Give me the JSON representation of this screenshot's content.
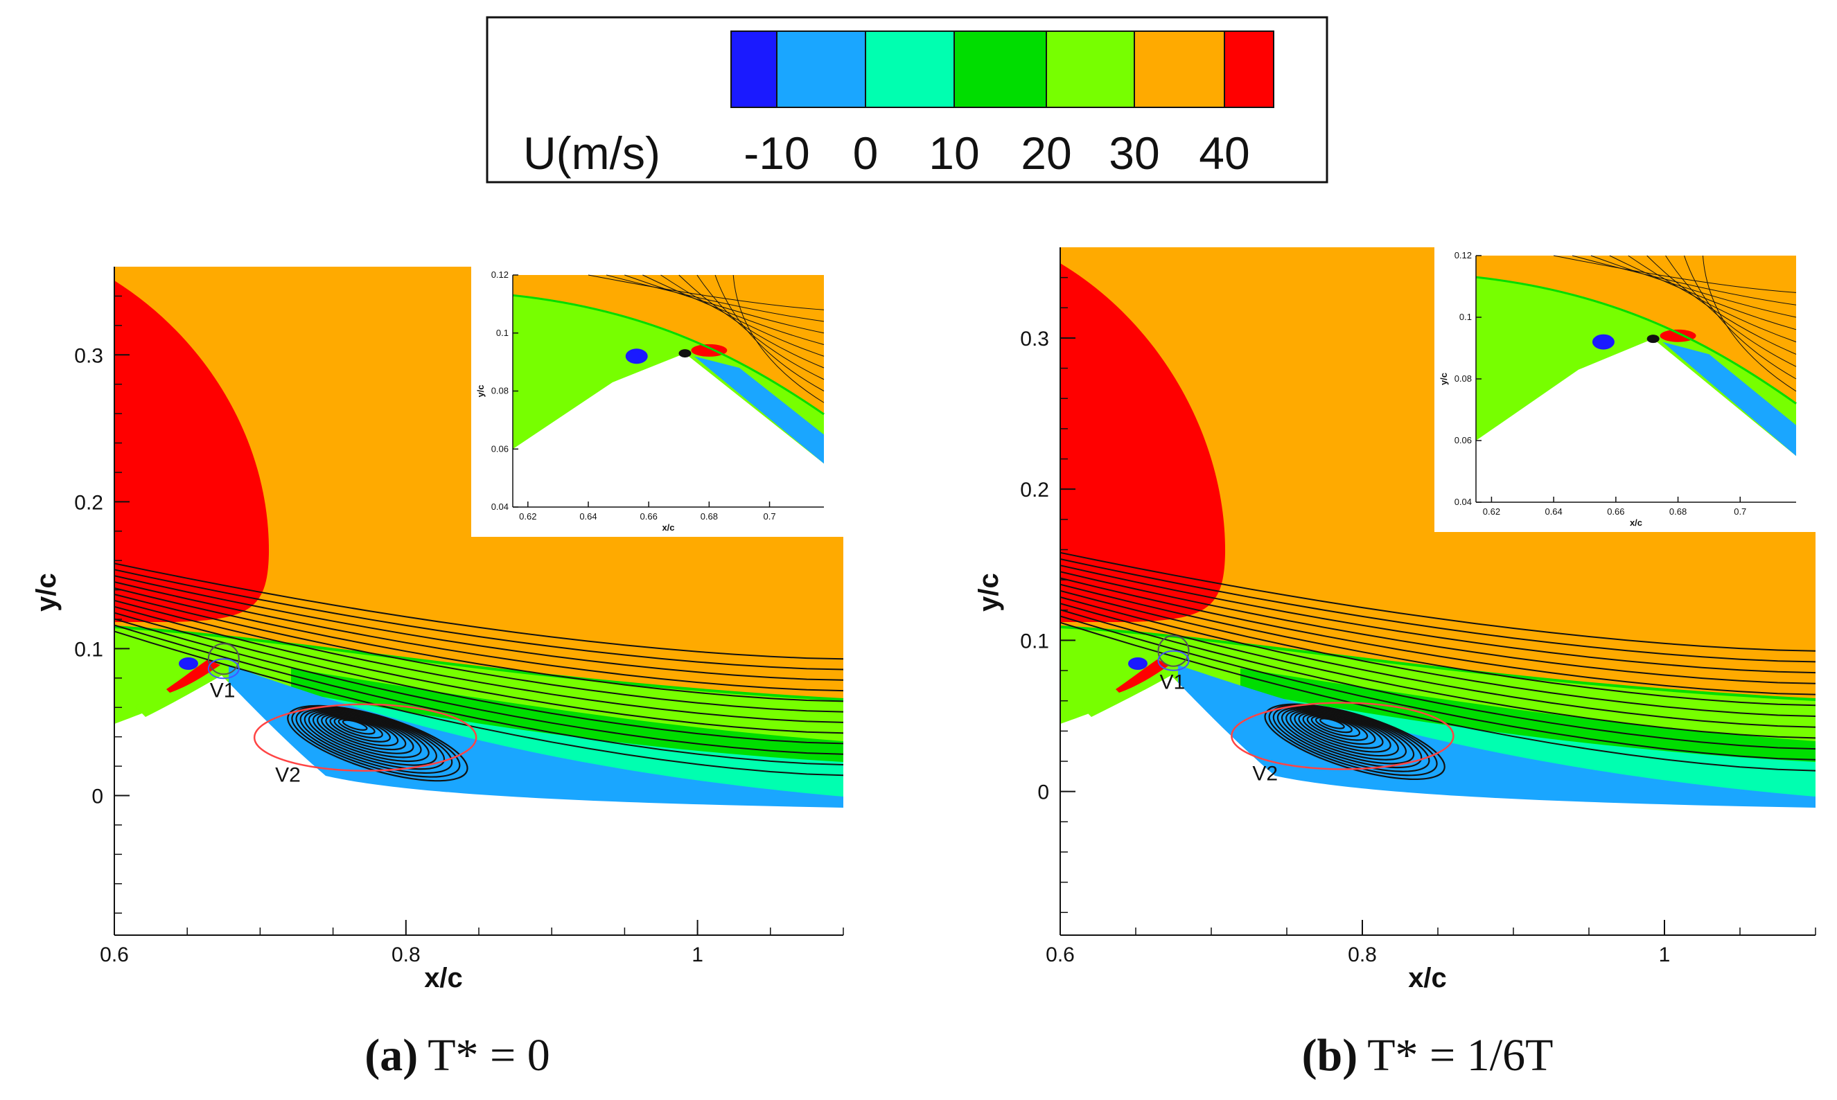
{
  "chart_data": {
    "type": "contour",
    "legend": {
      "title": "U(m/s)",
      "ticks": [
        "-10",
        "0",
        "10",
        "20",
        "30",
        "40"
      ],
      "level_colors": [
        "#1a1aff",
        "#1aa6ff",
        "#00ffb0",
        "#00dd00",
        "#77ff00",
        "#ffaa00",
        "#ff0000"
      ]
    },
    "panels": [
      {
        "caption_letter": "(a)",
        "caption_text": "T* = 0",
        "xlabel": "x/c",
        "ylabel": "y/c",
        "xlim": [
          0.6,
          1.1
        ],
        "ylim": [
          -0.095,
          0.36
        ],
        "xticks": [
          "0.6",
          "0.8",
          "1"
        ],
        "yticks": [
          "0",
          "0.1",
          "0.2",
          "0.3"
        ],
        "annotations": [
          "V1",
          "V2"
        ],
        "v2_center": [
          0.765,
          0.048
        ],
        "inset": {
          "xlabel": "x/c",
          "ylabel": "y/c",
          "xlim": [
            0.615,
            0.718
          ],
          "ylim": [
            0.04,
            0.12
          ],
          "xticks": [
            "0.62",
            "0.64",
            "0.66",
            "0.68",
            "0.7"
          ],
          "yticks": [
            "0.04",
            "0.06",
            "0.08",
            "0.1",
            "0.12"
          ]
        }
      },
      {
        "caption_letter": "(b)",
        "caption_text": "T* = 1/6T",
        "xlabel": "x/c",
        "ylabel": "y/c",
        "xlim": [
          0.6,
          1.1
        ],
        "ylim": [
          -0.095,
          0.36
        ],
        "xticks": [
          "0.6",
          "0.8",
          "1"
        ],
        "yticks": [
          "0",
          "0.1",
          "0.2",
          "0.3"
        ],
        "annotations": [
          "V1",
          "V2"
        ],
        "v2_center": [
          0.78,
          0.045
        ],
        "inset": {
          "xlabel": "x/c",
          "ylabel": "y/c",
          "xlim": [
            0.615,
            0.718
          ],
          "ylim": [
            0.04,
            0.12
          ],
          "xticks": [
            "0.62",
            "0.64",
            "0.66",
            "0.68",
            "0.7"
          ],
          "yticks": [
            "0.04",
            "0.06",
            "0.08",
            "0.1",
            "0.12"
          ]
        }
      }
    ]
  }
}
